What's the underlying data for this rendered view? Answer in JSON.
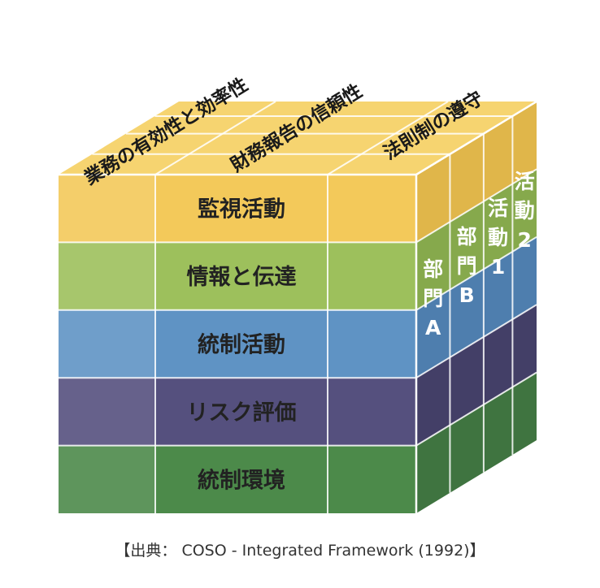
{
  "front_layers": [
    {
      "label": "監視活動",
      "color": "#f3c95a"
    },
    {
      "label": "情報と伝達",
      "color": "#9dc05c"
    },
    {
      "label": "統制活動",
      "color": "#5f93c4"
    },
    {
      "label": "リスク評価",
      "color": "#55507e"
    },
    {
      "label": "統制環境",
      "color": "#4c8a4a"
    }
  ],
  "side_layer_colors": [
    "#e0b64a",
    "#86a94c",
    "#4e7eae",
    "#433f67",
    "#3f7440"
  ],
  "top_color": "#f6d470",
  "objectives": [
    {
      "label": "業務の有効性と効率性"
    },
    {
      "label": "財務報告の信頼性"
    },
    {
      "label": "法則制の遵守"
    }
  ],
  "units": [
    {
      "label": "部門A"
    },
    {
      "label": "部門B"
    },
    {
      "label": "活動1"
    },
    {
      "label": "活動2"
    }
  ],
  "caption": "【出典： COSO - Integrated Framework (1992)】"
}
